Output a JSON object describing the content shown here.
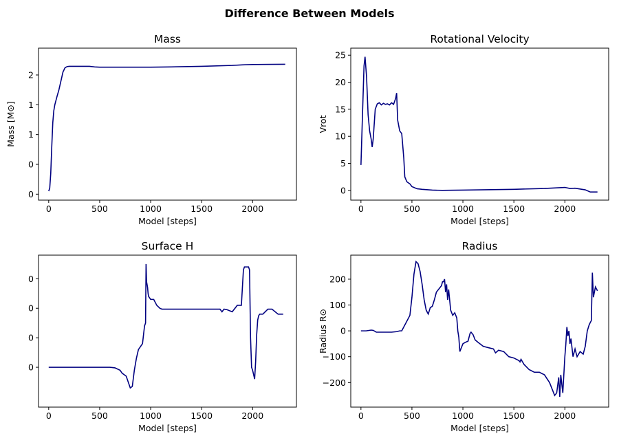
{
  "figure": {
    "title": "Difference Between Models"
  },
  "colors": {
    "line": "#000080",
    "axes": "#000000",
    "background": "#ffffff"
  },
  "chart_data": [
    {
      "type": "line",
      "title": "Mass",
      "xlabel": "Model [steps]",
      "ylabel": "Mass [M⊙]",
      "xlim": [
        -100,
        2430
      ],
      "ylim": [
        -0.1,
        2.45
      ],
      "xticks": [
        0,
        500,
        1000,
        1500,
        2000
      ],
      "xtick_labels": [
        "0",
        "500",
        "1000",
        "1500",
        "2000"
      ],
      "yticks": [
        0,
        0.5,
        1.0,
        1.5,
        2.0
      ],
      "ytick_labels": [
        "0",
        "0",
        "1",
        "1",
        "2"
      ],
      "grid": false,
      "series": [
        {
          "x": [
            0,
            10,
            20,
            30,
            40,
            50,
            60,
            80,
            100,
            120,
            140,
            160,
            180,
            200,
            250,
            300,
            350,
            400,
            450,
            500,
            600,
            800,
            1000,
            1200,
            1500,
            1800,
            1900,
            2000,
            2200,
            2320
          ],
          "y": [
            0.05,
            0.1,
            0.35,
            0.8,
            1.2,
            1.4,
            1.5,
            1.63,
            1.75,
            1.9,
            2.05,
            2.12,
            2.14,
            2.145,
            2.145,
            2.145,
            2.145,
            2.145,
            2.135,
            2.13,
            2.13,
            2.13,
            2.13,
            2.135,
            2.145,
            2.16,
            2.17,
            2.175,
            2.178,
            2.18
          ]
        }
      ]
    },
    {
      "type": "line",
      "title": "Rotational Velocity",
      "xlabel": "Model [steps]",
      "ylabel": "Vrot",
      "xlim": [
        -100,
        2430
      ],
      "ylim": [
        -1.8,
        26.3
      ],
      "xticks": [
        0,
        500,
        1000,
        1500,
        2000
      ],
      "xtick_labels": [
        "0",
        "500",
        "1000",
        "1500",
        "2000"
      ],
      "yticks": [
        0,
        5,
        10,
        15,
        20,
        25
      ],
      "ytick_labels": [
        "0",
        "5",
        "10",
        "15",
        "20",
        "25"
      ],
      "grid": false,
      "series": [
        {
          "x": [
            0,
            15,
            30,
            40,
            55,
            70,
            85,
            100,
            110,
            120,
            140,
            160,
            180,
            200,
            220,
            240,
            260,
            280,
            300,
            320,
            340,
            350,
            360,
            380,
            400,
            420,
            430,
            450,
            480,
            500,
            550,
            600,
            700,
            800,
            1000,
            1500,
            1800,
            1950,
            2000,
            2050,
            2100,
            2200,
            2250,
            2320
          ],
          "y": [
            4.7,
            14,
            23,
            24.7,
            21,
            14,
            11,
            9.5,
            8,
            9.5,
            15,
            16,
            16.2,
            15.8,
            16.1,
            15.9,
            16,
            15.8,
            16.2,
            15.9,
            17,
            18,
            13,
            11,
            10.5,
            6,
            2.5,
            1.6,
            1.2,
            0.7,
            0.3,
            0.2,
            0.05,
            0,
            0.05,
            0.2,
            0.35,
            0.5,
            0.55,
            0.35,
            0.4,
            0.1,
            -0.3,
            -0.3
          ]
        }
      ]
    },
    {
      "type": "line",
      "title": "Surface H",
      "xlabel": "Model [steps]",
      "ylabel": "",
      "xlim": [
        -100,
        2430
      ],
      "ylim": [
        -0.00335,
        0.0018
      ],
      "xticks": [
        0,
        500,
        1000,
        1500,
        2000
      ],
      "xtick_labels": [
        "0",
        "500",
        "1000",
        "1500",
        "2000"
      ],
      "yticks": [
        -0.002,
        -0.001,
        0.0,
        0.001
      ],
      "ytick_labels": [
        "0",
        "0",
        "0",
        "0"
      ],
      "grid": false,
      "series": [
        {
          "x": [
            0,
            100,
            200,
            400,
            600,
            650,
            700,
            720,
            760,
            800,
            820,
            840,
            860,
            880,
            900,
            920,
            940,
            950,
            955,
            960,
            965,
            970,
            975,
            980,
            1000,
            1030,
            1060,
            1090,
            1110,
            1200,
            1400,
            1600,
            1680,
            1700,
            1720,
            1750,
            1800,
            1850,
            1890,
            1910,
            1920,
            1940,
            1960,
            1970,
            1980,
            1990,
            2000,
            2020,
            2030,
            2040,
            2050,
            2060,
            2070,
            2100,
            2150,
            2170,
            2190,
            2250,
            2300
          ],
          "y": [
            -0.002,
            -0.002,
            -0.002,
            -0.002,
            -0.002,
            -0.00202,
            -0.0021,
            -0.0022,
            -0.0023,
            -0.0027,
            -0.00265,
            -0.0021,
            -0.0017,
            -0.0014,
            -0.0013,
            -0.0012,
            -0.0006,
            -0.0005,
            0.0015,
            0.0009,
            0.0008,
            0.0007,
            0.0005,
            0.0004,
            0.0003,
            0.0003,
            0.0001,
            0.0,
            -3e-05,
            -3e-05,
            -3e-05,
            -3e-05,
            -3e-05,
            -0.00012,
            -3e-05,
            -5e-05,
            -0.00012,
            0.0001,
            0.0001,
            0.0013,
            0.0014,
            0.0014,
            0.0014,
            0.0013,
            -0.001,
            -0.002,
            -0.0021,
            -0.0024,
            -0.0018,
            -0.0009,
            -0.0004,
            -0.00025,
            -0.0002,
            -0.0002,
            -3e-05,
            -3e-05,
            -3e-05,
            -0.0002,
            -0.0002
          ]
        }
      ]
    },
    {
      "type": "line",
      "title": "Radius",
      "xlabel": "Model [steps]",
      "ylabel": "Radius R⊙",
      "xlim": [
        -100,
        2430
      ],
      "ylim": [
        -295,
        293
      ],
      "xticks": [
        0,
        500,
        1000,
        1500,
        2000
      ],
      "xtick_labels": [
        "0",
        "500",
        "1000",
        "1500",
        "2000"
      ],
      "yticks": [
        -200,
        -100,
        0,
        100,
        200
      ],
      "ytick_labels": [
        "−200",
        "−100",
        "0",
        "100",
        "200"
      ],
      "grid": false,
      "series": [
        {
          "x": [
            0,
            50,
            100,
            120,
            150,
            200,
            300,
            350,
            380,
            400,
            440,
            460,
            480,
            500,
            520,
            540,
            560,
            580,
            600,
            620,
            640,
            660,
            680,
            700,
            720,
            740,
            760,
            780,
            790,
            800,
            810,
            820,
            830,
            840,
            850,
            860,
            880,
            900,
            920,
            940,
            950,
            960,
            970,
            1000,
            1020,
            1050,
            1070,
            1080,
            1100,
            1120,
            1150,
            1200,
            1250,
            1300,
            1320,
            1350,
            1400,
            1450,
            1500,
            1550,
            1560,
            1570,
            1600,
            1650,
            1700,
            1750,
            1800,
            1850,
            1880,
            1900,
            1920,
            1940,
            1950,
            1960,
            1980,
            2000,
            2010,
            2020,
            2030,
            2040,
            2050,
            2060,
            2080,
            2100,
            2120,
            2150,
            2180,
            2200,
            2220,
            2240,
            2260,
            2270,
            2280,
            2300,
            2320
          ],
          "y": [
            0,
            0,
            3,
            2,
            -5,
            -5,
            -5,
            -3,
            0,
            0,
            30,
            45,
            60,
            130,
            220,
            268,
            260,
            230,
            180,
            120,
            80,
            65,
            90,
            95,
            120,
            150,
            160,
            170,
            175,
            190,
            190,
            200,
            150,
            180,
            120,
            160,
            80,
            60,
            70,
            50,
            0,
            -25,
            -80,
            -50,
            -45,
            -40,
            -10,
            -5,
            -15,
            -35,
            -45,
            -60,
            -65,
            -70,
            -85,
            -75,
            -80,
            -100,
            -105,
            -115,
            -120,
            -110,
            -130,
            -150,
            -160,
            -160,
            -170,
            -200,
            -230,
            -250,
            -240,
            -180,
            -255,
            -170,
            -240,
            -100,
            -50,
            15,
            -20,
            0,
            -50,
            -30,
            -100,
            -70,
            -100,
            -80,
            -90,
            -60,
            0,
            25,
            40,
            225,
            130,
            170,
            155
          ]
        }
      ]
    }
  ]
}
